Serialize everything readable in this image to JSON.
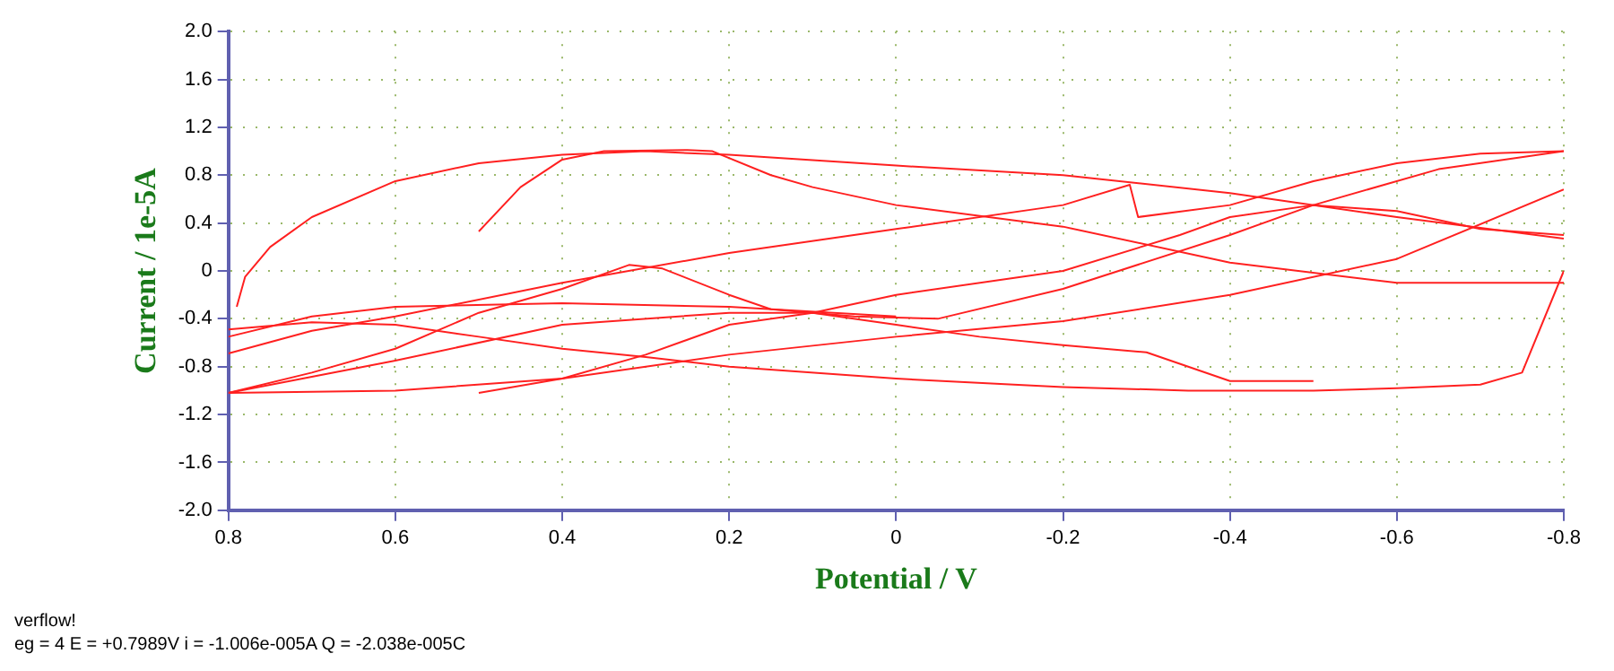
{
  "chart_data": {
    "type": "line",
    "xlabel": "Potential / V",
    "ylabel": "Current / 1e-5A",
    "xlim": [
      0.8,
      -0.8
    ],
    "xticks": [
      0.8,
      0.6,
      0.4,
      0.2,
      0,
      -0.2,
      -0.4,
      -0.6,
      -0.8
    ],
    "ylim": [
      -2,
      2
    ],
    "yticks": [
      {
        "value": 2,
        "label": "2.0"
      },
      1.6,
      1.2,
      0.8,
      0.4,
      0,
      -0.4,
      -0.8,
      -1.2,
      -1.6,
      {
        "value": -2,
        "label": "-2.0"
      }
    ],
    "grid": true,
    "legend": false,
    "marker": "none",
    "line_style": "solid",
    "annotations": [
      "verflow!",
      "eg = 4  E = +0.7989V  i = -1.006e-005A  Q = -2.038e-005C"
    ],
    "series": [
      {
        "color": "#ff2020",
        "x": [
          0.79,
          0.78,
          0.75,
          0.7,
          0.6,
          0.5,
          0.4,
          0.3,
          0.2,
          0,
          -0.2,
          -0.4,
          -0.6,
          -0.8
        ],
        "values": [
          -0.3,
          -0.05,
          0.2,
          0.45,
          0.75,
          0.9,
          0.97,
          1.0,
          0.97,
          0.88,
          0.8,
          0.65,
          0.45,
          0.27
        ]
      },
      {
        "color": "#ff2020",
        "x": [
          0.5,
          0.45,
          0.4,
          0.35,
          0.25,
          0.22,
          0.15,
          0.1,
          0,
          -0.2,
          -0.4,
          -0.6,
          -0.8
        ],
        "values": [
          0.33,
          0.7,
          0.93,
          1.0,
          1.01,
          1.0,
          0.8,
          0.7,
          0.55,
          0.37,
          0.07,
          -0.1,
          -0.1
        ]
      },
      {
        "color": "#ff2020",
        "x": [
          0.8,
          0.7,
          0.6,
          0.4,
          0.2,
          0,
          -0.2,
          -0.28,
          -0.29,
          -0.4,
          -0.5,
          -0.6,
          -0.7,
          -0.8
        ],
        "values": [
          -0.69,
          -0.5,
          -0.38,
          -0.1,
          0.15,
          0.35,
          0.55,
          0.72,
          0.45,
          0.55,
          0.75,
          0.9,
          0.98,
          1.0
        ]
      },
      {
        "color": "#ff2020",
        "x": [
          0.8,
          0.7,
          0.6,
          0.5,
          0.4,
          0.32,
          0.28,
          0.2,
          0.15,
          0.05,
          -0.05,
          -0.2,
          -0.4,
          -0.5,
          -0.65,
          -0.8
        ],
        "values": [
          -1.02,
          -0.85,
          -0.65,
          -0.35,
          -0.15,
          0.05,
          0.02,
          -0.2,
          -0.32,
          -0.38,
          -0.4,
          -0.15,
          0.3,
          0.55,
          0.85,
          1.0
        ]
      },
      {
        "color": "#ff2020",
        "x": [
          0.8,
          0.6,
          0.4,
          0.2,
          0.1,
          0,
          -0.2,
          -0.34,
          -0.4,
          -0.5,
          -0.6,
          -0.7,
          -0.8
        ],
        "values": [
          -1.02,
          -0.75,
          -0.45,
          -0.35,
          -0.35,
          -0.2,
          0.0,
          0.3,
          0.45,
          0.55,
          0.5,
          0.35,
          0.3
        ]
      },
      {
        "color": "#ff2020",
        "x": [
          0.8,
          0.6,
          0.4,
          0.2,
          0,
          -0.2,
          -0.4,
          -0.6,
          -0.8
        ],
        "values": [
          -1.02,
          -1.0,
          -0.9,
          -0.7,
          -0.55,
          -0.42,
          -0.2,
          0.1,
          0.68
        ]
      },
      {
        "color": "#ff2020",
        "x": [
          0.5,
          0.4,
          0.3,
          0.2,
          0.1,
          0,
          -0.1,
          -0.2,
          -0.3,
          -0.35,
          -0.4,
          -0.5
        ],
        "values": [
          -1.02,
          -0.9,
          -0.7,
          -0.45,
          -0.35,
          -0.45,
          -0.55,
          -0.62,
          -0.68,
          -0.8,
          -0.92,
          -0.92
        ]
      },
      {
        "color": "#ff2020",
        "x": [
          0.8,
          0.7,
          0.6,
          0.5,
          0.4,
          0.3,
          0.2,
          0,
          -0.2,
          -0.35,
          -0.5,
          -0.6,
          -0.7,
          -0.75,
          -0.8
        ],
        "values": [
          -0.49,
          -0.43,
          -0.45,
          -0.55,
          -0.65,
          -0.72,
          -0.8,
          -0.9,
          -0.97,
          -1.0,
          -1.0,
          -0.98,
          -0.95,
          -0.85,
          0.0
        ]
      },
      {
        "color": "#ff2020",
        "x": [
          0.8,
          0.7,
          0.6,
          0.4,
          0.2,
          0
        ],
        "values": [
          -0.55,
          -0.38,
          -0.3,
          -0.27,
          -0.3,
          -0.38
        ]
      }
    ]
  }
}
